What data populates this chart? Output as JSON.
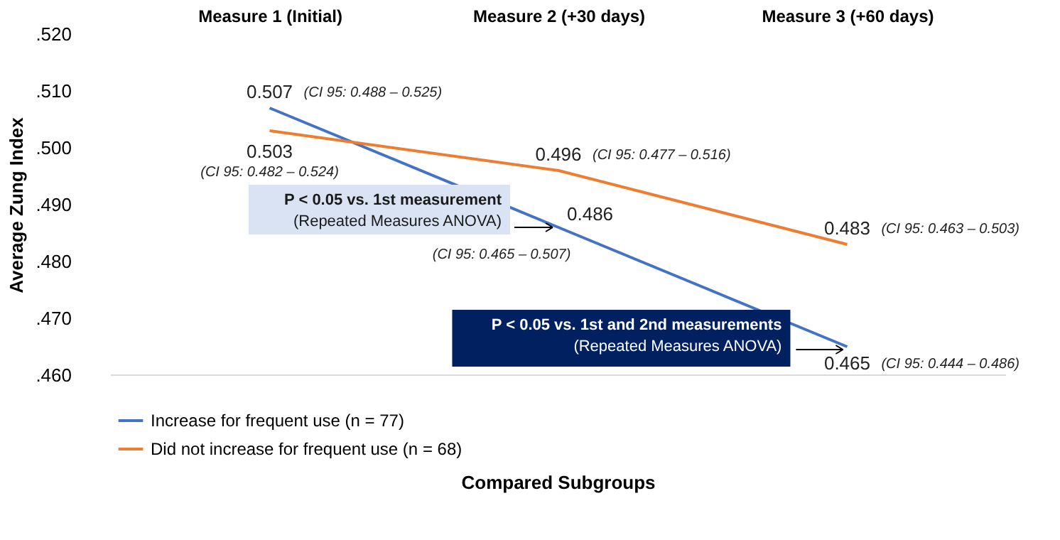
{
  "chart_data": {
    "type": "line",
    "xlabel": "Compared Subgroups",
    "ylabel": "Average Zung Index",
    "categories": [
      "Measure 1 (Initial)",
      "Measure 2 (+30 days)",
      "Measure 3 (+60 days)"
    ],
    "series": [
      {
        "name": "Increase for frequent use (n = 77)",
        "color": "#4472c4",
        "values": [
          0.507,
          0.486,
          0.465
        ]
      },
      {
        "name": "Did not increase for frequent use (n = 68)",
        "color": "#ed7d31",
        "values": [
          0.503,
          0.496,
          0.483
        ]
      }
    ],
    "ylim": [
      0.46,
      0.52
    ],
    "yticks": [
      {
        "value": 0.46,
        "label": ".460"
      },
      {
        "value": 0.47,
        "label": ".470"
      },
      {
        "value": 0.48,
        "label": ".480"
      },
      {
        "value": 0.49,
        "label": ".490"
      },
      {
        "value": 0.5,
        "label": ".500"
      },
      {
        "value": 0.51,
        "label": ".510"
      },
      {
        "value": 0.52,
        "label": ".520"
      }
    ],
    "data_labels": true,
    "grid": false,
    "legend": "bottom",
    "annotations": [
      {
        "text": "(CI 95: 0.488 – 0.525)",
        "x": "Measure 1 (Initial)",
        "y": 0.507
      },
      {
        "text": "(CI 95: 0.482 – 0.524)",
        "x": "Measure 1 (Initial)",
        "y": 0.503
      },
      {
        "text": "(CI 95: 0.477 – 0.516)",
        "x": "Measure 2 (+30 days)",
        "y": 0.496
      },
      {
        "text": "(CI 95: 0.465 – 0.507)",
        "x": "Measure 2 (+30 days)",
        "y": 0.486
      },
      {
        "text": "(CI 95: 0.463 – 0.503)",
        "x": "Measure 3 (+60 days)",
        "y": 0.483
      },
      {
        "text": "(CI 95: 0.444 – 0.486)",
        "x": "Measure 3 (+60 days)",
        "y": 0.465
      },
      {
        "text": "P < 0.05 vs. 1st measurement\n(Repeated Measures ANOVA)",
        "x": "Measure 2 (+30 days)",
        "y": 0.486
      },
      {
        "text": "P < 0.05 vs. 1st and 2nd measurements\n(Repeated Measures ANOVA)",
        "x": "Measure 3 (+60 days)",
        "y": 0.465
      }
    ]
  }
}
